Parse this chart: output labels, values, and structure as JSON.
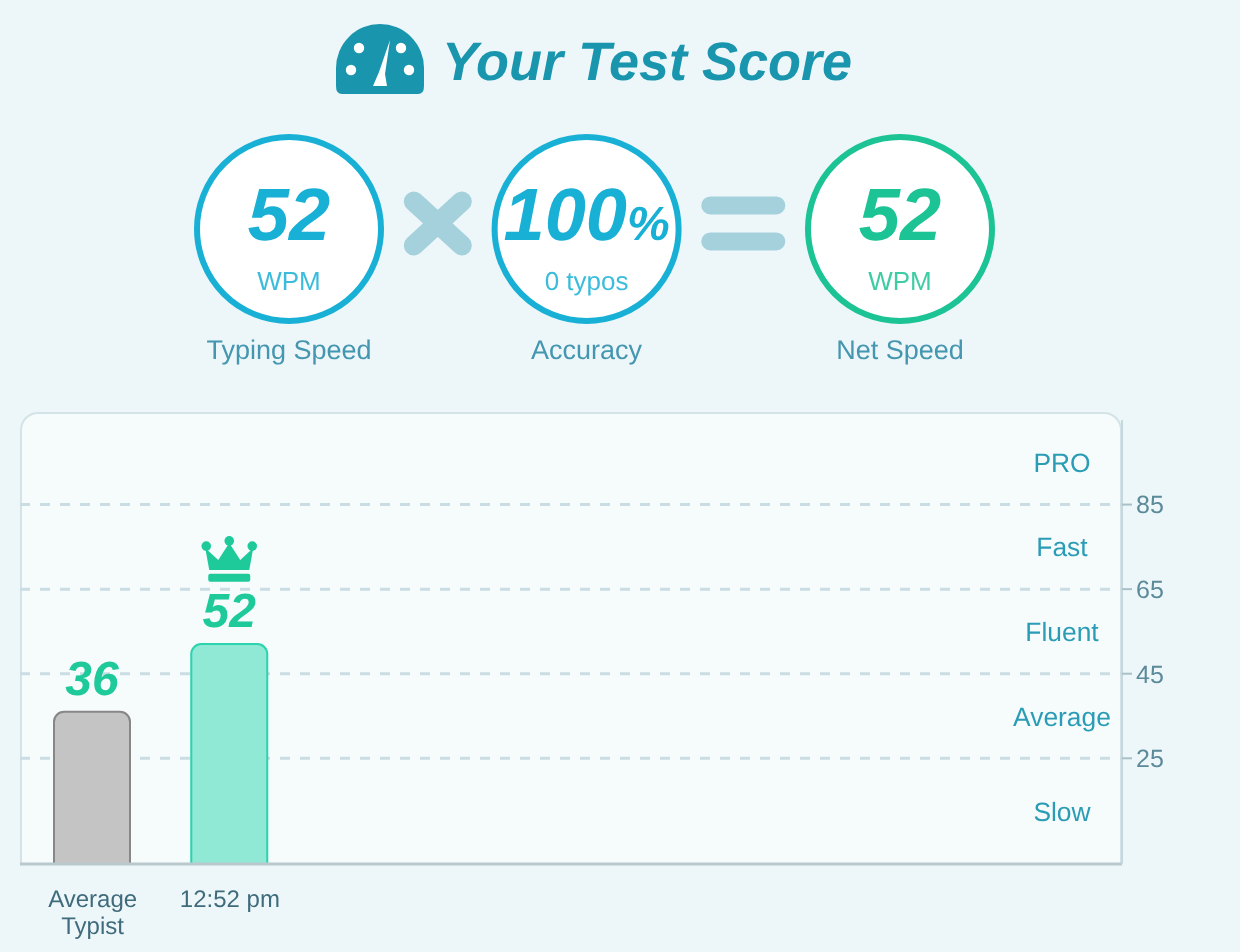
{
  "chart_data": [
    {
      "type": "other",
      "title": "Your Test Score",
      "categories": [
        "Typing Speed",
        "Accuracy",
        "Net Speed"
      ],
      "value_labels": [
        "52",
        "100%",
        "52"
      ],
      "colors": [
        "#19b0d6",
        "#19b0d6",
        "#1cc394"
      ],
      "annotations": [
        "WPM",
        "0 typos",
        "WPM"
      ]
    },
    {
      "type": "bar",
      "categories": [
        "Average Typist",
        "12:52 pm",
        null,
        null,
        null,
        null,
        null,
        null
      ],
      "values": [
        36,
        52,
        null,
        null,
        null,
        null,
        null,
        null
      ],
      "colors": [
        "#c4c4c4",
        "#8fe9d5",
        null,
        null,
        null,
        null,
        null,
        null
      ],
      "data_labels": true,
      "ylim": [
        0,
        105
      ],
      "yticks": [
        25,
        45,
        65,
        85
      ],
      "grid": "y",
      "annotations": [
        "PRO",
        "Fast",
        "Fluent",
        "Average",
        "Slow"
      ]
    }
  ]
}
